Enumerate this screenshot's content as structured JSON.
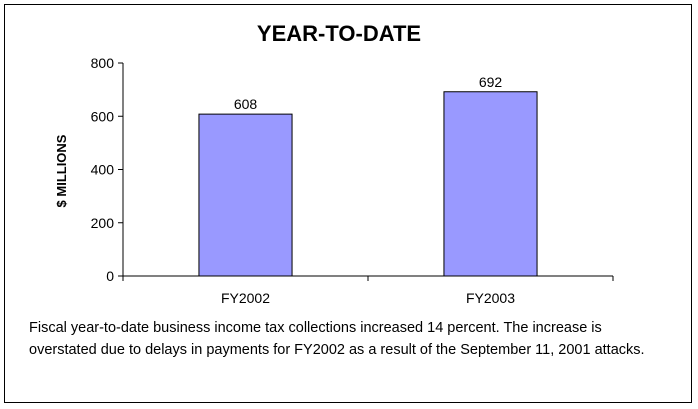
{
  "chart_data": {
    "type": "bar",
    "title": "YEAR-TO-DATE",
    "ylabel": "$ MILLIONS",
    "xlabel": "",
    "categories": [
      "FY2002",
      "FY2003"
    ],
    "values": [
      608,
      692
    ],
    "data_labels": [
      "608",
      "692"
    ],
    "ylim": [
      0,
      800
    ],
    "yticks": [
      0,
      200,
      400,
      600,
      800
    ],
    "ytick_labels": [
      "0",
      "200",
      "400",
      "600",
      "800"
    ],
    "grid": false,
    "legend": "none",
    "colors": {
      "bar_fill": "#9999ff",
      "bar_stroke": "#000000",
      "axis": "#000000"
    }
  },
  "caption": "Fiscal year-to-date business income tax collections increased 14 percent. The increase is overstated due to delays in payments for FY2002 as a result of the September 11, 2001 attacks."
}
